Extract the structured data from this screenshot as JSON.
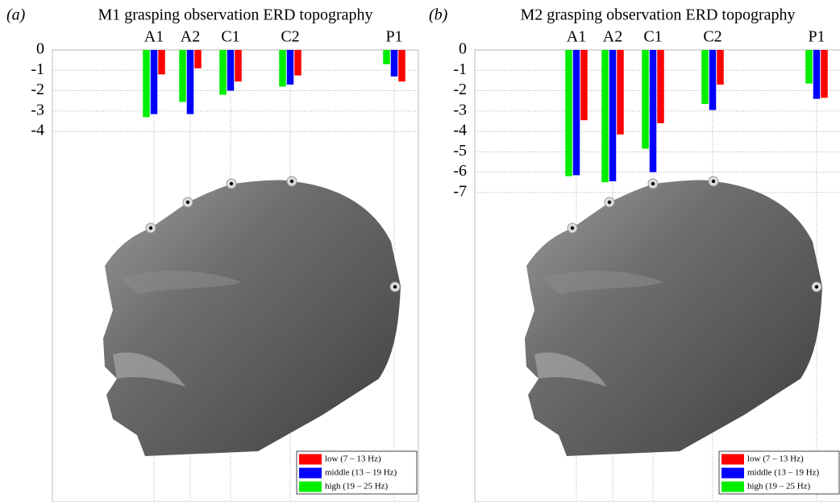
{
  "chart_data": [
    {
      "type": "bar",
      "panel": "(a)",
      "title": "M1 grasping observation ERD topography",
      "categories": [
        "A1",
        "A2",
        "C1",
        "C2",
        "P1"
      ],
      "series": [
        {
          "name": "low (7 – 13 Hz)",
          "color": "#ff0000",
          "values": [
            -1.2,
            -0.9,
            -1.55,
            -1.25,
            -1.55
          ]
        },
        {
          "name": "middle (13 – 19 Hz)",
          "color": "#0000ff",
          "values": [
            -3.15,
            -3.15,
            -2.0,
            -1.7,
            -1.3
          ]
        },
        {
          "name": "high (19 – 25 Hz)",
          "color": "#00ee00",
          "values": [
            -3.3,
            -2.55,
            -2.2,
            -1.8,
            -0.7
          ]
        }
      ],
      "ylim": [
        -22.2,
        0
      ],
      "yticks": [
        0,
        -1,
        -2,
        -3,
        -4
      ],
      "grid": true,
      "legend": "lower right"
    },
    {
      "type": "bar",
      "panel": "(b)",
      "title": "M2 grasping observation ERD topography",
      "categories": [
        "A1",
        "A2",
        "C1",
        "C2",
        "P1"
      ],
      "series": [
        {
          "name": "low (7 – 13 Hz)",
          "color": "#ff0000",
          "values": [
            -3.45,
            -4.15,
            -3.6,
            -1.7,
            -2.35
          ]
        },
        {
          "name": "middle (13 – 19 Hz)",
          "color": "#0000ff",
          "values": [
            -6.15,
            -6.45,
            -6.0,
            -2.95,
            -2.4
          ]
        },
        {
          "name": "high (19 – 25 Hz)",
          "color": "#00ee00",
          "values": [
            -6.2,
            -6.5,
            -4.85,
            -2.65,
            -1.65
          ]
        }
      ],
      "ylim": [
        -22.2,
        0
      ],
      "yticks": [
        0,
        -1,
        -2,
        -3,
        -4,
        -5,
        -6,
        -7
      ],
      "grid": true,
      "legend": "lower right"
    }
  ]
}
